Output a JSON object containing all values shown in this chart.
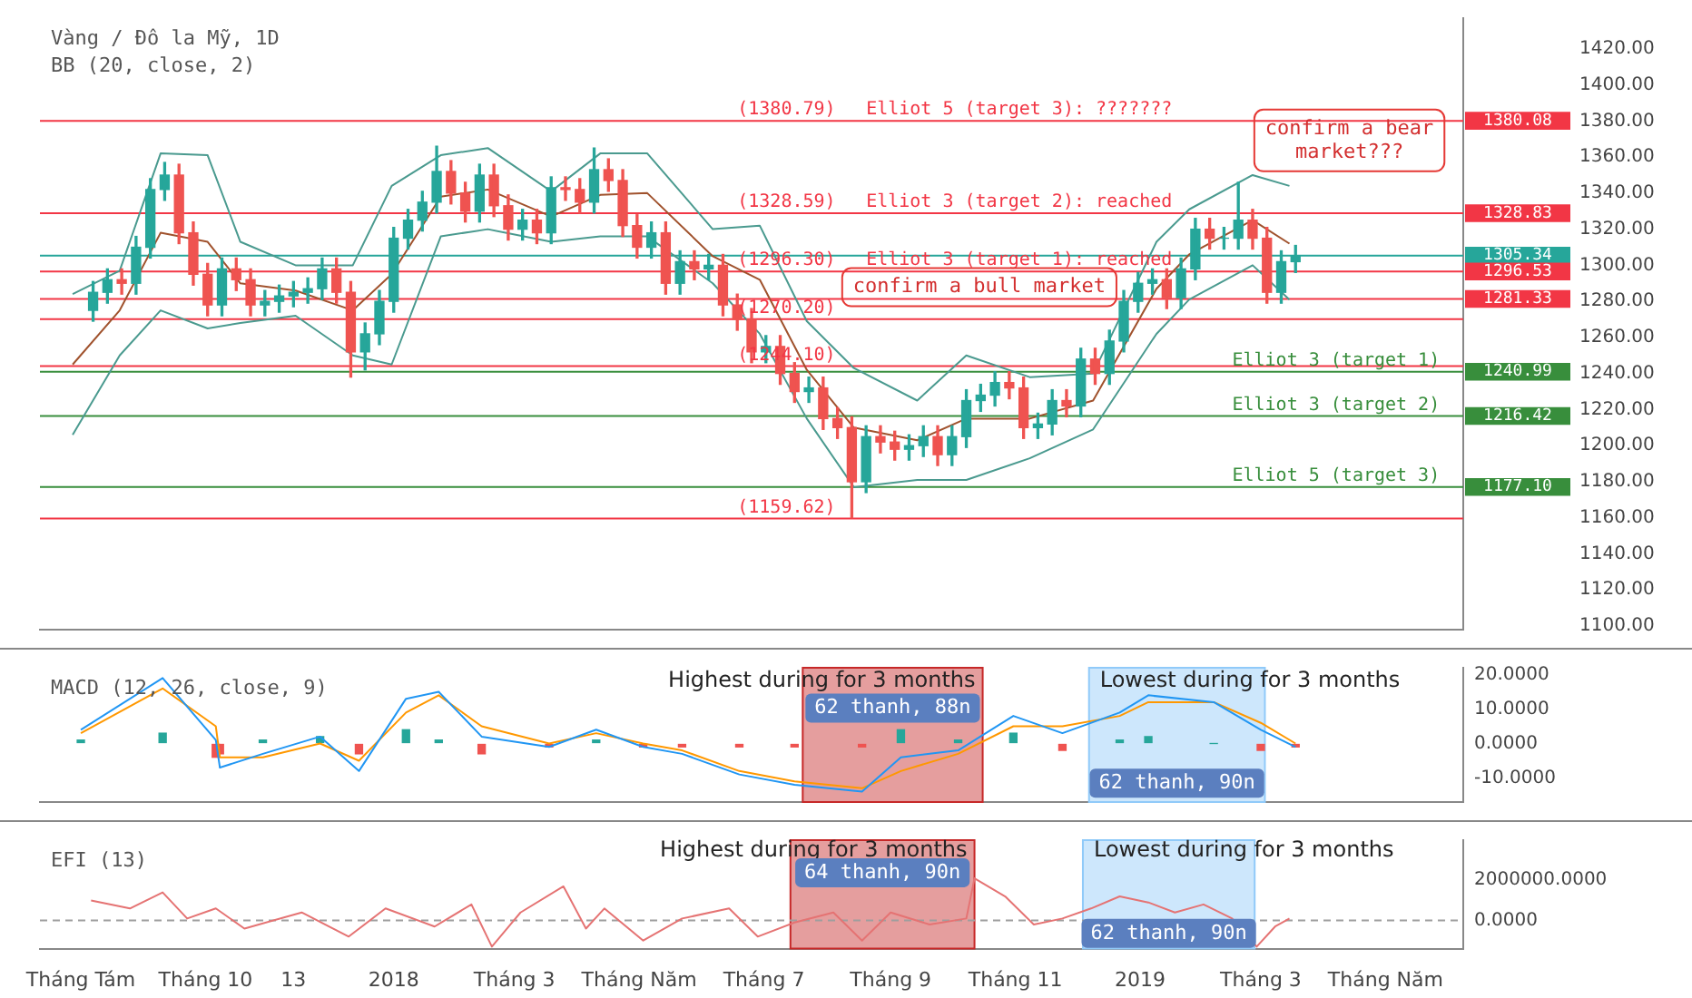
{
  "chart_data": [
    {
      "type": "candlestick",
      "title": "Vàng / Đô la Mỹ, 1D",
      "subtitle": "BB (20, close, 2)",
      "x": [
        "2017-08-07",
        "2017-08-14",
        "2017-08-21",
        "2017-08-28",
        "2017-09-04",
        "2017-09-11",
        "2017-09-18",
        "2017-09-25",
        "2017-10-02",
        "2017-10-09",
        "2017-10-16",
        "2017-10-23",
        "2017-10-30",
        "2017-11-06",
        "2017-11-13",
        "2017-11-20",
        "2017-11-27",
        "2017-12-04",
        "2017-12-11",
        "2017-12-18",
        "2017-12-25",
        "2018-01-01",
        "2018-01-08",
        "2018-01-15",
        "2018-01-22",
        "2018-01-29",
        "2018-02-05",
        "2018-02-12",
        "2018-02-19",
        "2018-02-26",
        "2018-03-05",
        "2018-03-12",
        "2018-03-19",
        "2018-03-26",
        "2018-04-02",
        "2018-04-09",
        "2018-04-16",
        "2018-04-23",
        "2018-04-30",
        "2018-05-07",
        "2018-05-14",
        "2018-05-21",
        "2018-05-28",
        "2018-06-04",
        "2018-06-11",
        "2018-06-18",
        "2018-06-25",
        "2018-07-02",
        "2018-07-09",
        "2018-07-16",
        "2018-07-23",
        "2018-07-30",
        "2018-08-06",
        "2018-08-13",
        "2018-08-20",
        "2018-08-27",
        "2018-09-03",
        "2018-09-10",
        "2018-09-17",
        "2018-09-24",
        "2018-10-01",
        "2018-10-08",
        "2018-10-15",
        "2018-10-22",
        "2018-10-29",
        "2018-11-05",
        "2018-11-12",
        "2018-11-19",
        "2018-11-26",
        "2018-12-03",
        "2018-12-10",
        "2018-12-17",
        "2018-12-24",
        "2018-12-31",
        "2019-01-07",
        "2019-01-14",
        "2019-01-21",
        "2019-01-28",
        "2019-02-04",
        "2019-02-11",
        "2019-02-18",
        "2019-02-25",
        "2019-03-04",
        "2019-03-11",
        "2019-03-18"
      ],
      "ohlc": [
        [
          1275,
          1291,
          1269,
          1285
        ],
        [
          1285,
          1298,
          1279,
          1292
        ],
        [
          1292,
          1298,
          1284,
          1290
        ],
        [
          1290,
          1316,
          1284,
          1310
        ],
        [
          1310,
          1348,
          1304,
          1342
        ],
        [
          1342,
          1357,
          1336,
          1350
        ],
        [
          1350,
          1356,
          1312,
          1318
        ],
        [
          1318,
          1324,
          1289,
          1295
        ],
        [
          1295,
          1301,
          1272,
          1278
        ],
        [
          1278,
          1304,
          1272,
          1298
        ],
        [
          1298,
          1304,
          1286,
          1292
        ],
        [
          1292,
          1298,
          1272,
          1278
        ],
        [
          1278,
          1286,
          1272,
          1280
        ],
        [
          1280,
          1289,
          1274,
          1283
        ],
        [
          1283,
          1291,
          1277,
          1285
        ],
        [
          1285,
          1293,
          1279,
          1287
        ],
        [
          1287,
          1304,
          1281,
          1298
        ],
        [
          1298,
          1304,
          1279,
          1285
        ],
        [
          1285,
          1291,
          1238,
          1252
        ],
        [
          1252,
          1268,
          1242,
          1262
        ],
        [
          1262,
          1286,
          1256,
          1280
        ],
        [
          1280,
          1321,
          1274,
          1315
        ],
        [
          1315,
          1331,
          1309,
          1325
        ],
        [
          1325,
          1341,
          1319,
          1335
        ],
        [
          1335,
          1366,
          1329,
          1352
        ],
        [
          1352,
          1358,
          1334,
          1340
        ],
        [
          1340,
          1346,
          1324,
          1330
        ],
        [
          1330,
          1356,
          1324,
          1350
        ],
        [
          1350,
          1356,
          1327,
          1333
        ],
        [
          1333,
          1339,
          1314,
          1320
        ],
        [
          1320,
          1331,
          1314,
          1325
        ],
        [
          1325,
          1331,
          1312,
          1318
        ],
        [
          1318,
          1349,
          1312,
          1343
        ],
        [
          1343,
          1349,
          1336,
          1342
        ],
        [
          1342,
          1348,
          1329,
          1335
        ],
        [
          1335,
          1365,
          1329,
          1353
        ],
        [
          1353,
          1359,
          1341,
          1347
        ],
        [
          1347,
          1353,
          1316,
          1322
        ],
        [
          1322,
          1328,
          1304,
          1310
        ],
        [
          1310,
          1324,
          1304,
          1318
        ],
        [
          1318,
          1324,
          1284,
          1290
        ],
        [
          1290,
          1308,
          1284,
          1302
        ],
        [
          1302,
          1308,
          1292,
          1298
        ],
        [
          1298,
          1306,
          1292,
          1300
        ],
        [
          1300,
          1306,
          1272,
          1278
        ],
        [
          1278,
          1284,
          1264,
          1270
        ],
        [
          1270,
          1276,
          1246,
          1252
        ],
        [
          1252,
          1261,
          1246,
          1255
        ],
        [
          1255,
          1261,
          1234,
          1240
        ],
        [
          1240,
          1246,
          1224,
          1230
        ],
        [
          1230,
          1238,
          1224,
          1232
        ],
        [
          1232,
          1238,
          1209,
          1215
        ],
        [
          1215,
          1221,
          1204,
          1210
        ],
        [
          1210,
          1216,
          1160,
          1180
        ],
        [
          1180,
          1211,
          1174,
          1205
        ],
        [
          1205,
          1211,
          1196,
          1202
        ],
        [
          1202,
          1208,
          1192,
          1198
        ],
        [
          1198,
          1206,
          1192,
          1200
        ],
        [
          1200,
          1211,
          1194,
          1205
        ],
        [
          1205,
          1211,
          1189,
          1195
        ],
        [
          1195,
          1211,
          1189,
          1205
        ],
        [
          1205,
          1231,
          1199,
          1225
        ],
        [
          1225,
          1234,
          1219,
          1228
        ],
        [
          1228,
          1241,
          1222,
          1235
        ],
        [
          1235,
          1241,
          1226,
          1232
        ],
        [
          1232,
          1238,
          1204,
          1210
        ],
        [
          1210,
          1218,
          1204,
          1212
        ],
        [
          1212,
          1231,
          1206,
          1225
        ],
        [
          1225,
          1231,
          1216,
          1222
        ],
        [
          1222,
          1254,
          1216,
          1248
        ],
        [
          1248,
          1254,
          1234,
          1240
        ],
        [
          1240,
          1264,
          1234,
          1258
        ],
        [
          1258,
          1286,
          1252,
          1280
        ],
        [
          1280,
          1296,
          1274,
          1290
        ],
        [
          1290,
          1298,
          1284,
          1292
        ],
        [
          1292,
          1298,
          1276,
          1282
        ],
        [
          1282,
          1304,
          1276,
          1298
        ],
        [
          1298,
          1326,
          1292,
          1320
        ],
        [
          1320,
          1326,
          1309,
          1315
        ],
        [
          1315,
          1321,
          1309,
          1315
        ],
        [
          1315,
          1346,
          1309,
          1325
        ],
        [
          1325,
          1331,
          1309,
          1315
        ],
        [
          1315,
          1321,
          1279,
          1285
        ],
        [
          1285,
          1308,
          1279,
          1302
        ],
        [
          1302,
          1311,
          1296,
          1305
        ]
      ],
      "series": [
        {
          "type": "line",
          "color": "#4a9a8f",
          "x": [
            "2017-07-28",
            "2017-08-20",
            "2017-09-09",
            "2017-10-02",
            "2017-10-18",
            "2017-11-14",
            "2017-12-12",
            "2017-12-31",
            "2018-01-24",
            "2018-02-16",
            "2018-03-19",
            "2018-04-12",
            "2018-05-05",
            "2018-06-06",
            "2018-06-29",
            "2018-07-22",
            "2018-08-14",
            "2018-09-14",
            "2018-10-08",
            "2018-11-08",
            "2018-12-09",
            "2019-01-09",
            "2019-01-25",
            "2019-02-25",
            "2019-03-15"
          ],
          "values": [
            1284,
            1297,
            1362,
            1361,
            1313,
            1300,
            1300,
            1344,
            1361,
            1365,
            1341,
            1362,
            1362,
            1320,
            1322,
            1269,
            1243,
            1225,
            1250,
            1238,
            1240,
            1313,
            1331,
            1350,
            1344
          ]
        },
        {
          "type": "line",
          "color": "#a0522d",
          "x": [
            "2017-07-28",
            "2017-08-20",
            "2017-09-09",
            "2017-10-02",
            "2017-10-18",
            "2017-11-14",
            "2017-12-12",
            "2017-12-31",
            "2018-01-24",
            "2018-02-16",
            "2018-03-19",
            "2018-04-12",
            "2018-05-05",
            "2018-06-06",
            "2018-06-29",
            "2018-07-22",
            "2018-08-14",
            "2018-09-14",
            "2018-10-08",
            "2018-11-08",
            "2018-12-09",
            "2019-01-09",
            "2019-01-25",
            "2019-02-25",
            "2019-03-15"
          ],
          "values": [
            1245,
            1275,
            1318,
            1313,
            1290,
            1286,
            1275,
            1295,
            1338,
            1342,
            1327,
            1339,
            1340,
            1305,
            1292,
            1242,
            1210,
            1203,
            1215,
            1215,
            1225,
            1287,
            1306,
            1325,
            1312
          ]
        },
        {
          "type": "line",
          "color": "#4a9a8f",
          "x": [
            "2017-07-28",
            "2017-08-20",
            "2017-09-09",
            "2017-10-02",
            "2017-10-18",
            "2017-11-14",
            "2017-12-12",
            "2017-12-31",
            "2018-01-24",
            "2018-02-16",
            "2018-03-19",
            "2018-04-12",
            "2018-05-05",
            "2018-06-06",
            "2018-06-29",
            "2018-07-22",
            "2018-08-14",
            "2018-09-14",
            "2018-10-08",
            "2018-11-08",
            "2018-12-09",
            "2019-01-09",
            "2019-01-25",
            "2019-02-25",
            "2019-03-15"
          ],
          "values": [
            1206,
            1250,
            1275,
            1265,
            1268,
            1272,
            1250,
            1245,
            1316,
            1320,
            1313,
            1316,
            1316,
            1290,
            1262,
            1215,
            1177,
            1181,
            1181,
            1193,
            1209,
            1262,
            1281,
            1300,
            1281
          ]
        }
      ],
      "xlim": [
        "2017-07-12",
        "2019-06-08"
      ],
      "ylim": [
        1098,
        1437
      ],
      "yticks": [
        {
          "value": 1100,
          "label": "1100.00"
        },
        {
          "value": 1120,
          "label": "1120.00"
        },
        {
          "value": 1140,
          "label": "1140.00"
        },
        {
          "value": 1160,
          "label": "1160.00"
        },
        {
          "value": 1180,
          "label": "1180.00"
        },
        {
          "value": 1200,
          "label": "1200.00"
        },
        {
          "value": 1220,
          "label": "1220.00"
        },
        {
          "value": 1240,
          "label": "1240.00"
        },
        {
          "value": 1260,
          "label": "1260.00"
        },
        {
          "value": 1280,
          "label": "1280.00"
        },
        {
          "value": 1300,
          "label": "1300.00"
        },
        {
          "value": 1320,
          "label": "1320.00"
        },
        {
          "value": 1340,
          "label": "1340.00"
        },
        {
          "value": 1360,
          "label": "1360.00"
        },
        {
          "value": 1380,
          "label": "1380.00"
        },
        {
          "value": 1400,
          "label": "1400.00"
        },
        {
          "value": 1420,
          "label": "1420.00"
        }
      ],
      "ref_lines": [
        {
          "axis": "y",
          "value": 1380.08,
          "color": "#f23645",
          "label": "1380.08"
        },
        {
          "axis": "y",
          "value": 1328.83,
          "color": "#f23645",
          "label": "1328.83"
        },
        {
          "axis": "y",
          "value": 1305.34,
          "color": "#26a69a",
          "label": "1305.34"
        },
        {
          "axis": "y",
          "value": 1296.53,
          "color": "#f23645",
          "label": "1296.53"
        },
        {
          "axis": "y",
          "value": 1281.33,
          "color": "#f23645",
          "label": "1281.33"
        },
        {
          "axis": "y",
          "value": 1270.2,
          "color": "#f23645"
        },
        {
          "axis": "y",
          "value": 1244.1,
          "color": "#f23645"
        },
        {
          "axis": "y",
          "value": 1159.62,
          "color": "#f23645"
        },
        {
          "axis": "y",
          "value": 1240.99,
          "color": "#388e3c",
          "label": "1240.99"
        },
        {
          "axis": "y",
          "value": 1216.42,
          "color": "#388e3c",
          "label": "1216.42"
        },
        {
          "axis": "y",
          "value": 1177.1,
          "color": "#388e3c",
          "label": "1177.10"
        }
      ],
      "annotations": [
        {
          "text": "(1380.79)",
          "x": "2018-06-18",
          "y": 1380.08
        },
        {
          "text": "Elliot 5 (target 3): ???????",
          "x": "2018-08-20",
          "y": 1380.08
        },
        {
          "text": "(1328.59)",
          "x": "2018-06-18",
          "y": 1328.83
        },
        {
          "text": "Elliot 3 (target 2): reached",
          "x": "2018-08-20",
          "y": 1328.83
        },
        {
          "text": "(1296.30)",
          "x": "2018-06-18",
          "y": 1296.53
        },
        {
          "text": "Elliot 3 (target 1): reached",
          "x": "2018-08-20",
          "y": 1296.53
        },
        {
          "text": "(1270.20)",
          "x": "2018-06-18",
          "y": 1270.2
        },
        {
          "text": "(1244.10)",
          "x": "2018-06-18",
          "y": 1244.1
        },
        {
          "text": "(1159.62)",
          "x": "2018-06-18",
          "y": 1159.62
        },
        {
          "text": "Elliot 3 (target 1)",
          "x": "2019-02-15",
          "y": 1240.99
        },
        {
          "text": "Elliot 3 (target 2)",
          "x": "2019-02-15",
          "y": 1216.42
        },
        {
          "text": "Elliot 5 (target 3)",
          "x": "2019-02-15",
          "y": 1177.1
        },
        "confirm a bull market",
        "confirm a bear market???"
      ],
      "tick_labels": "y"
    },
    {
      "type": "line",
      "title": "MACD (12, 26, close, 9)",
      "x": [
        "2017-08-01",
        "2017-09-10",
        "2017-10-06",
        "2017-10-08",
        "2017-10-29",
        "2017-11-26",
        "2017-12-15",
        "2018-01-07",
        "2018-01-23",
        "2018-02-13",
        "2018-03-18",
        "2018-04-10",
        "2018-05-03",
        "2018-05-22",
        "2018-06-19",
        "2018-07-16",
        "2018-08-18",
        "2018-09-06",
        "2018-10-04",
        "2018-10-31",
        "2018-11-24",
        "2018-12-22",
        "2019-01-05",
        "2019-02-06",
        "2019-03-01",
        "2019-03-18"
      ],
      "series": [
        {
          "type": "bar",
          "colors": [
            "#26a69a",
            "#26a69a",
            "#ef5350",
            "#ef5350",
            "#26a69a",
            "#26a69a",
            "#ef5350",
            "#26a69a",
            "#26a69a",
            "#ef5350",
            "#ef5350",
            "#26a69a",
            "#ef5350",
            "#ef5350",
            "#ef5350",
            "#ef5350",
            "#ef5350",
            "#26a69a",
            "#26a69a",
            "#26a69a",
            "#ef5350",
            "#26a69a",
            "#26a69a",
            "#26a69a",
            "#ef5350",
            "#ef5350"
          ],
          "values": [
            1,
            3,
            -4,
            -3,
            1,
            2,
            -3,
            4,
            1,
            -3,
            -1,
            1,
            -1,
            -1,
            -1,
            -1,
            -1,
            4,
            1,
            3,
            -2,
            1,
            2,
            0,
            -2,
            -1
          ]
        },
        {
          "type": "line",
          "color": "#2196f3",
          "values": [
            4,
            19,
            1,
            -7,
            -3,
            2,
            -8,
            13,
            15,
            2,
            -1,
            4,
            -1,
            -3,
            -9,
            -12,
            -14,
            -4,
            -2,
            8,
            3,
            9,
            14,
            12,
            4,
            -1
          ]
        },
        {
          "type": "line",
          "color": "#ff9800",
          "values": [
            3,
            16,
            5,
            -4,
            -4,
            0,
            -5,
            9,
            14,
            5,
            0,
            3,
            0,
            -2,
            -8,
            -11,
            -13,
            -8,
            -3,
            5,
            5,
            8,
            12,
            12,
            6,
            0
          ]
        }
      ],
      "xlim": [
        "2017-07-12",
        "2019-06-08"
      ],
      "ylim": [
        -17,
        22
      ],
      "yticks": [
        {
          "value": -10,
          "label": "-10.0000"
        },
        {
          "value": 0,
          "label": "0.0000"
        },
        {
          "value": 10,
          "label": "10.0000"
        },
        {
          "value": 20,
          "label": "20.0000"
        }
      ],
      "bands": [
        {
          "axis": "x",
          "from": "2018-07-20",
          "to": "2018-10-16",
          "label": "Highest during for 3 months",
          "color": "#c62828"
        },
        {
          "axis": "x",
          "from": "2018-12-07",
          "to": "2019-03-03",
          "label": "Lowest during for 3 months",
          "color": "#90caf9"
        }
      ],
      "annotations": [
        "62 thanh, 88n",
        "62 thanh, 90n"
      ],
      "tick_labels": "y"
    },
    {
      "type": "line",
      "title": "EFI (13)",
      "x": [
        "2017-08-06",
        "2017-08-25",
        "2017-09-10",
        "2017-09-22",
        "2017-10-06",
        "2017-10-20",
        "2017-11-17",
        "2017-12-10",
        "2017-12-28",
        "2018-01-21",
        "2018-02-08",
        "2018-02-18",
        "2018-03-04",
        "2018-03-25",
        "2018-04-05",
        "2018-04-14",
        "2018-05-03",
        "2018-05-22",
        "2018-06-14",
        "2018-06-28",
        "2018-07-16",
        "2018-08-04",
        "2018-08-18",
        "2018-09-01",
        "2018-09-20",
        "2018-10-08",
        "2018-10-12",
        "2018-10-27",
        "2018-11-10",
        "2018-11-24",
        "2018-12-08",
        "2018-12-22",
        "2019-01-05",
        "2019-01-18",
        "2019-02-01",
        "2019-02-15",
        "2019-02-27",
        "2019-03-08",
        "2019-03-15"
      ],
      "series": [
        {
          "type": "line",
          "color": "#e57373",
          "values": [
            1000000,
            600000,
            1400000,
            100000,
            600000,
            -400000,
            400000,
            -800000,
            600000,
            -300000,
            800000,
            -1300000,
            400000,
            1700000,
            -400000,
            600000,
            -1000000,
            100000,
            600000,
            -800000,
            -100000,
            400000,
            -1000000,
            400000,
            -200000,
            100000,
            2100000,
            1200000,
            -200000,
            100000,
            600000,
            1200000,
            900000,
            400000,
            800000,
            100000,
            -1300000,
            -300000,
            100000
          ]
        }
      ],
      "xlim": [
        "2017-07-12",
        "2019-06-08"
      ],
      "ylim": [
        -1400000,
        4000000
      ],
      "yticks": [
        {
          "value": 0,
          "label": "0.0000"
        },
        {
          "value": 2000000,
          "label": "2000000.0000"
        }
      ],
      "xticks": [
        {
          "value": "2017-08-01",
          "label": "Tháng Tám"
        },
        {
          "value": "2017-10-01",
          "label": "Tháng 10"
        },
        {
          "value": "2017-11-13",
          "label": "13"
        },
        {
          "value": "2018-01-01",
          "label": "2018"
        },
        {
          "value": "2018-03-01",
          "label": "Tháng 3"
        },
        {
          "value": "2018-05-01",
          "label": "Tháng Năm"
        },
        {
          "value": "2018-07-01",
          "label": "Tháng 7"
        },
        {
          "value": "2018-09-01",
          "label": "Tháng 9"
        },
        {
          "value": "2018-11-01",
          "label": "Tháng 11"
        },
        {
          "value": "2019-01-01",
          "label": "2019"
        },
        {
          "value": "2019-03-01",
          "label": "Tháng 3"
        },
        {
          "value": "2019-05-01",
          "label": "Tháng Năm"
        }
      ],
      "ref_lines": [
        {
          "axis": "y",
          "value": 0,
          "color": "#9e9e9e",
          "line_style": "dashed"
        }
      ],
      "bands": [
        {
          "axis": "x",
          "from": "2018-07-14",
          "to": "2018-10-12",
          "label": "Highest during for 3 months",
          "color": "#c62828"
        },
        {
          "axis": "x",
          "from": "2018-12-04",
          "to": "2019-02-26",
          "label": "Lowest during for 3 months",
          "color": "#90caf9"
        }
      ],
      "annotations": [
        "64 thanh, 90n",
        "62 thanh, 90n"
      ]
    }
  ]
}
